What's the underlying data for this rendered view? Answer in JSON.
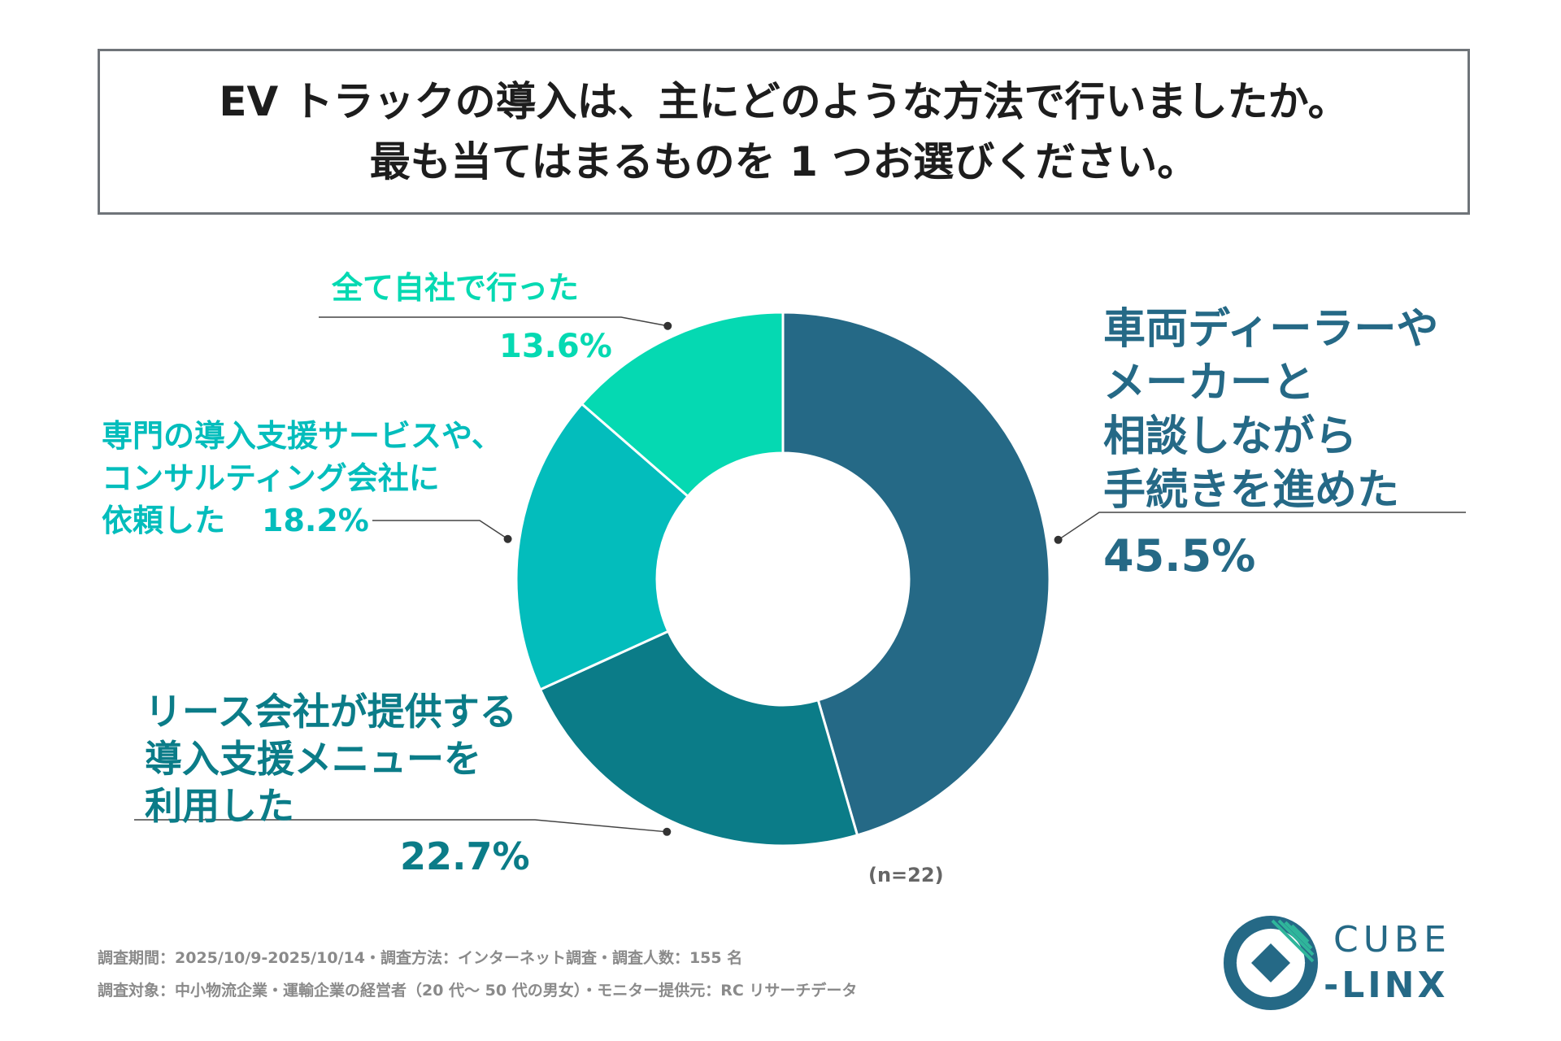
{
  "title": {
    "line1": "EV トラックの導入は、主にどのような方法で行いましたか。",
    "line2": "最も当てはまるものを 1 つお選びください。"
  },
  "chart_data": {
    "type": "pie",
    "variant": "donut",
    "title": "EV トラックの導入は、主にどのような方法で行いましたか。最も当てはまるものを 1 つお選びください。",
    "n_label": "(n=22)",
    "slices": [
      {
        "label_lines": [
          "車両ディーラーや",
          "メーカーと",
          "相談しながら",
          "手続きを進めた"
        ],
        "value": 45.5,
        "value_label": "45.5%",
        "color": "#256986"
      },
      {
        "label_lines": [
          "リース会社が提供する",
          "導入支援メニューを",
          "利用した"
        ],
        "value": 22.7,
        "value_label": "22.7%",
        "color": "#0b7c88"
      },
      {
        "label_lines": [
          "専門の導入支援サービスや、",
          "コンサルティング会社に",
          "依頼した"
        ],
        "value": 18.2,
        "value_label": "18.2%",
        "color": "#03bdbc"
      },
      {
        "label_lines": [
          "全て自社で行った"
        ],
        "value": 13.6,
        "value_label": "13.6%",
        "color": "#05d9b2"
      }
    ]
  },
  "footer": {
    "line1": "調査期間：2025/10/9-2025/10/14・調査方法：インターネット調査・調査人数：155 名",
    "line2": "調査対象：中小物流企業・運輸企業の経営者（20 代～ 50 代の男女）・モニター提供元：RC リサーチデータ"
  },
  "logo": {
    "top": "CUBE",
    "bottom": "-LINX",
    "color": "#256986"
  }
}
